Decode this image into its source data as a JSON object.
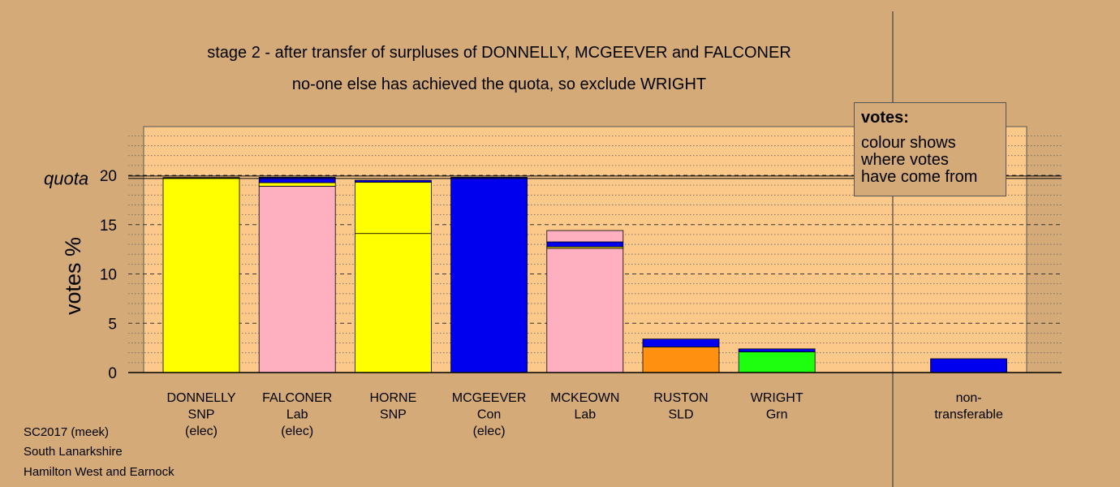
{
  "title_line1": "stage 2 - after transfer of surpluses of DONNELLY, MCGEEVER and FALCONER",
  "title_line2": "no-one else has achieved the quota, so exclude WRIGHT",
  "legend": {
    "heading": "votes:",
    "lines": [
      "colour shows",
      "where votes",
      "have come from"
    ]
  },
  "footer": [
    "SC2017 (meek)",
    "South Lanarkshire",
    "Hamilton West and Earnock"
  ],
  "colors": {
    "background": "#d4aa78",
    "plot_background": "#fcc98a",
    "SNP": "#ffff00",
    "Lab": "#ffb0c0",
    "Con": "#0000ee",
    "SLD": "#ff9010",
    "Grn": "#1eff10"
  },
  "chart_data": {
    "type": "bar",
    "stacked": true,
    "ylabel": "votes %",
    "quota_label": "quota",
    "quota": 19.8,
    "ylim": [
      0,
      25
    ],
    "yticks": [
      0,
      5,
      10,
      15,
      20
    ],
    "grid": "dotted minor every 1, dashed major every 5",
    "legend_position": "top-right",
    "categories": [
      {
        "lines": [
          "DONNELLY",
          "SNP",
          "(elec)"
        ],
        "segments": [
          {
            "party": "SNP",
            "value": 19.75
          },
          {
            "party": "Con",
            "value": 0.03
          }
        ]
      },
      {
        "lines": [
          "FALCONER",
          "Lab",
          "(elec)"
        ],
        "segments": [
          {
            "party": "Lab",
            "value": 18.9
          },
          {
            "party": "SNP",
            "value": 0.35
          },
          {
            "party": "Con",
            "value": 0.55
          }
        ]
      },
      {
        "lines": [
          "HORNE",
          "SNP"
        ],
        "segments": [
          {
            "party": "SNP",
            "value": 14.1
          },
          {
            "party": "SNP",
            "value": 5.2
          },
          {
            "party": "Con",
            "value": 0.2
          }
        ]
      },
      {
        "lines": [
          "MCGEEVER",
          "Con",
          "(elec)"
        ],
        "segments": [
          {
            "party": "Con",
            "value": 19.8
          }
        ]
      },
      {
        "lines": [
          "MCKEOWN",
          "Lab"
        ],
        "segments": [
          {
            "party": "Lab",
            "value": 12.6
          },
          {
            "party": "SNP",
            "value": 0.15
          },
          {
            "party": "Con",
            "value": 0.5
          },
          {
            "party": "Lab",
            "value": 1.15
          }
        ]
      },
      {
        "lines": [
          "RUSTON",
          "SLD"
        ],
        "segments": [
          {
            "party": "SLD",
            "value": 2.6
          },
          {
            "party": "Con",
            "value": 0.8
          }
        ]
      },
      {
        "lines": [
          "WRIGHT",
          "Grn"
        ],
        "segments": [
          {
            "party": "Grn",
            "value": 2.1
          },
          {
            "party": "Con",
            "value": 0.3
          }
        ]
      },
      {
        "lines": [],
        "segments": []
      },
      {
        "lines": [
          "non-",
          "transferable"
        ],
        "segments": [
          {
            "party": "Con",
            "value": 1.4
          }
        ]
      }
    ]
  }
}
